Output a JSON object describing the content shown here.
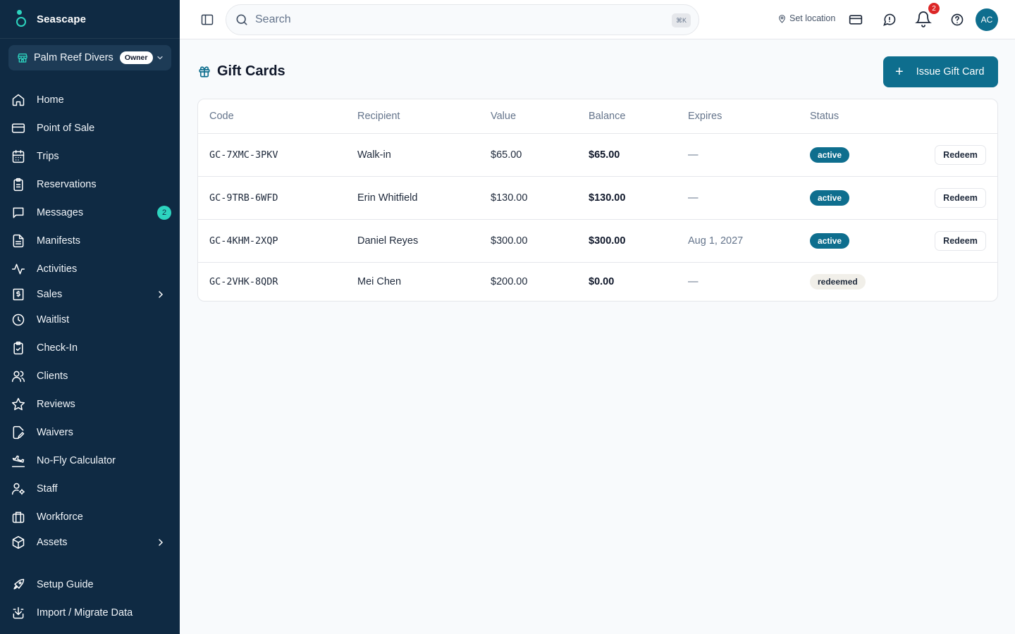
{
  "brand": {
    "name": "Seascape",
    "colors": {
      "sidebar": "#0f2a43",
      "accent": "#2dd4bf",
      "primary": "#0e6e8e"
    }
  },
  "org": {
    "name": "Palm Reef Divers",
    "role": "Owner"
  },
  "sidebar": {
    "items": [
      {
        "label": "Home",
        "icon": "home-icon"
      },
      {
        "label": "Point of Sale",
        "icon": "credit-card-icon"
      },
      {
        "label": "Trips",
        "icon": "calendar-icon"
      },
      {
        "label": "Reservations",
        "icon": "clipboard-icon"
      },
      {
        "label": "Messages",
        "icon": "message-icon",
        "badge": "2"
      },
      {
        "label": "Manifests",
        "icon": "document-icon"
      },
      {
        "label": "Activities",
        "icon": "activity-icon"
      },
      {
        "label": "Sales",
        "icon": "receipt-icon",
        "expandable": true
      },
      {
        "label": "Waitlist",
        "icon": "clock-icon"
      },
      {
        "label": "Check-In",
        "icon": "clipboard-check-icon"
      },
      {
        "label": "Clients",
        "icon": "users-icon"
      },
      {
        "label": "Reviews",
        "icon": "star-icon"
      },
      {
        "label": "Waivers",
        "icon": "file-signature-icon"
      },
      {
        "label": "No-Fly Calculator",
        "icon": "plane-landing-icon"
      },
      {
        "label": "Staff",
        "icon": "user-cog-icon"
      },
      {
        "label": "Workforce",
        "icon": "building-icon"
      },
      {
        "label": "Assets",
        "icon": "box-icon",
        "expandable": true
      }
    ],
    "footer_items": [
      {
        "label": "Setup Guide",
        "icon": "rocket-icon"
      },
      {
        "label": "Import / Migrate Data",
        "icon": "import-icon"
      }
    ]
  },
  "topbar": {
    "search_placeholder": "Search",
    "search_shortcut": "⌘K",
    "set_location": "Set location",
    "notification_count": "2",
    "avatar_initials": "AC"
  },
  "page": {
    "title": "Gift Cards",
    "issue_button": "Issue Gift Card",
    "columns": [
      "Code",
      "Recipient",
      "Value",
      "Balance",
      "Expires",
      "Status"
    ],
    "rows": [
      {
        "code": "GC-7XMC-3PKV",
        "recipient": "Walk-in",
        "value": "$65.00",
        "balance": "$65.00",
        "expires": "—",
        "status": "active",
        "action": "Redeem"
      },
      {
        "code": "GC-9TRB-6WFD",
        "recipient": "Erin Whitfield",
        "value": "$130.00",
        "balance": "$130.00",
        "expires": "—",
        "status": "active",
        "action": "Redeem"
      },
      {
        "code": "GC-4KHM-2XQP",
        "recipient": "Daniel Reyes",
        "value": "$300.00",
        "balance": "$300.00",
        "expires": "Aug 1, 2027",
        "status": "active",
        "action": "Redeem"
      },
      {
        "code": "GC-2VHK-8QDR",
        "recipient": "Mei Chen",
        "value": "$200.00",
        "balance": "$0.00",
        "expires": "—",
        "status": "redeemed"
      }
    ]
  }
}
